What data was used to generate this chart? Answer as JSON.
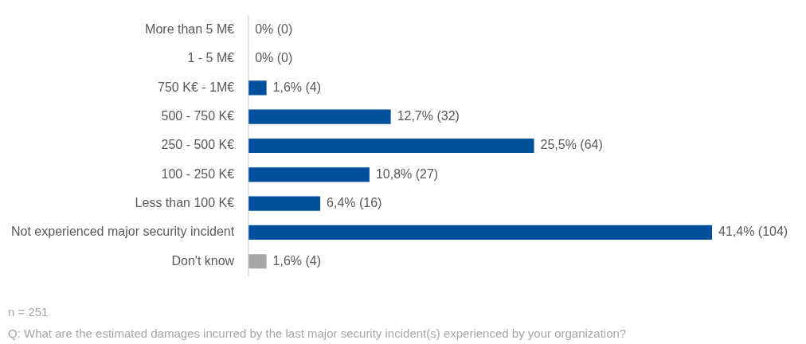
{
  "chart_data": {
    "type": "bar",
    "orientation": "horizontal",
    "categories": [
      "More than 5 M€",
      "1 - 5 M€",
      "750 K€ - 1M€",
      "500 - 750 K€",
      "250 - 500 K€",
      "100 - 250 K€",
      "Less than 100 K€",
      "Not experienced major security incident",
      "Don't know"
    ],
    "values": [
      0,
      0,
      1.6,
      12.7,
      25.5,
      10.8,
      6.4,
      41.4,
      1.6
    ],
    "colors": [
      "#00509e",
      "#00509e",
      "#00509e",
      "#00509e",
      "#00509e",
      "#00509e",
      "#00509e",
      "#00509e",
      "#a6a6a6"
    ],
    "value_labels": [
      "0% (0)",
      "0% (0)",
      "1,6% (4)",
      "12,7% (32)",
      "25,5% (64)",
      "10,8% (27)",
      "6,4% (16)",
      "41,4% (104)",
      "1,6% (4)"
    ],
    "tick_labels": "y",
    "grid": false,
    "legend": false,
    "annotations": [
      "n = 251",
      "Q: What are the estimated damages incurred by the last major security incident(s) experienced by your organization?"
    ]
  }
}
